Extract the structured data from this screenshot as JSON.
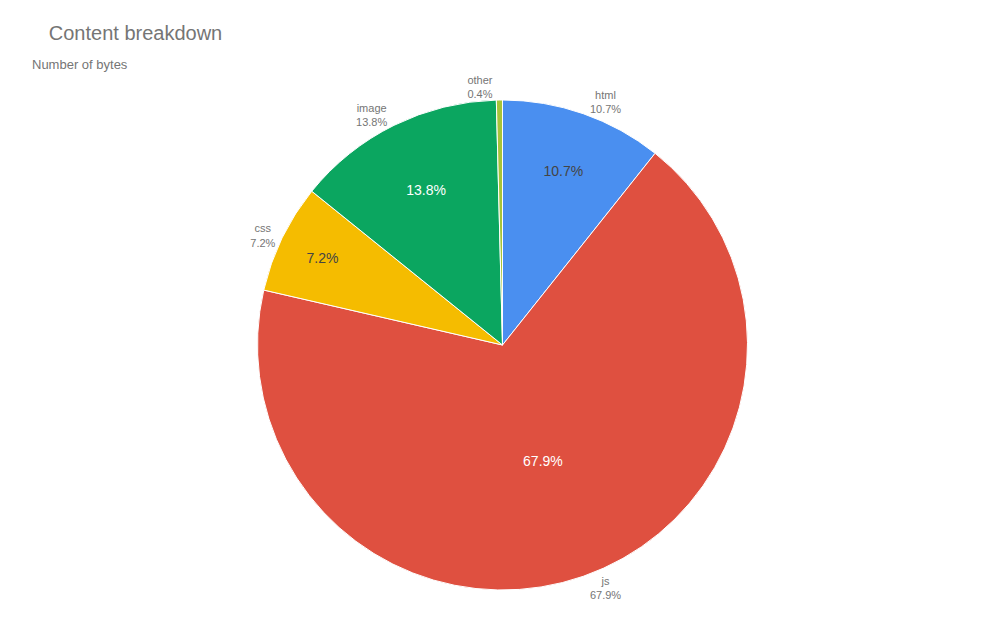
{
  "chart_data": {
    "type": "pie",
    "title": "Content breakdown",
    "subtitle": "Number of bytes",
    "categories": [
      "html",
      "js",
      "css",
      "image",
      "other"
    ],
    "values": [
      10.7,
      67.9,
      7.2,
      13.8,
      0.4
    ],
    "value_labels": [
      "10.7%",
      "67.9%",
      "7.2%",
      "13.8%",
      "0.4%"
    ],
    "colors": [
      "#4a8ff0",
      "#df5040",
      "#f5bc00",
      "#0ba660",
      "#a6c43a"
    ],
    "data_labels": true
  }
}
